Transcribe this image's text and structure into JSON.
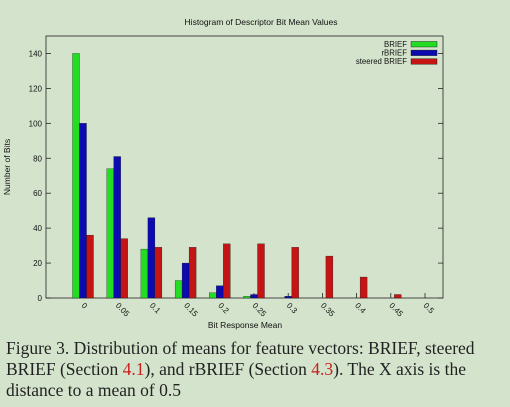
{
  "chart_data": {
    "type": "bar",
    "title": "Histogram of Descriptor Bit Mean Values",
    "xlabel": "Bit Response Mean",
    "ylabel": "Number of Bits",
    "categories": [
      "0",
      "0.05",
      "0.1",
      "0.15",
      "0.2",
      "0.25",
      "0.3",
      "0.35",
      "0.4",
      "0.45",
      "0.5"
    ],
    "ylim": [
      0,
      150
    ],
    "yticks": [
      0,
      20,
      40,
      60,
      80,
      100,
      120,
      140
    ],
    "legend_position": "top-right",
    "grid": false,
    "series": [
      {
        "name": "BRIEF",
        "color": "#22dd22",
        "values": [
          140,
          74,
          28,
          10,
          3,
          1,
          0,
          0,
          0,
          0,
          0
        ]
      },
      {
        "name": "rBRIEF",
        "color": "#0b0bb0",
        "values": [
          100,
          81,
          46,
          20,
          7,
          2,
          1,
          0,
          0,
          0,
          0
        ]
      },
      {
        "name": "steered BRIEF",
        "color": "#c41414",
        "values": [
          36,
          34,
          29,
          29,
          31,
          31,
          29,
          24,
          12,
          2,
          0
        ]
      }
    ]
  },
  "caption": {
    "prefix": "Figure 3. Distribution of means for feature vectors:  BRIEF, steered BRIEF (Section ",
    "ref1": "4.1",
    "mid": "), and rBRIEF (Section ",
    "ref2": "4.3",
    "suffix": ").  The X axis is the distance to a mean of 0.5"
  }
}
